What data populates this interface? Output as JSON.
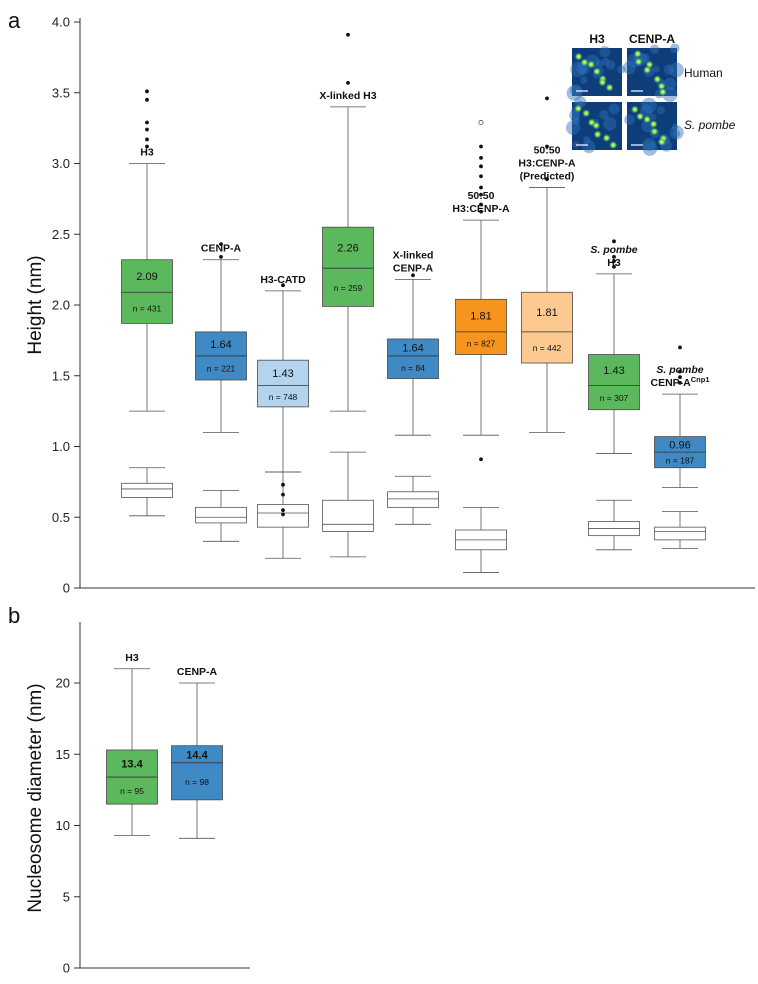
{
  "panels": {
    "a_letter": "a",
    "b_letter": "b"
  },
  "colors": {
    "green": "#5cb85c",
    "blue": "#3f8ac5",
    "light_blue": "#b3d4ec",
    "orange": "#f7941d",
    "peach": "#fcc991",
    "white": "#ffffff",
    "stroke": "#555555"
  },
  "inset": {
    "col_labels": [
      "H3",
      "CENP-A"
    ],
    "row_labels": [
      "Human",
      "S. pombe"
    ]
  },
  "chart_data": [
    {
      "type": "box",
      "panel": "a",
      "ylabel": "Height (nm)",
      "ylim": [
        0,
        4.0
      ],
      "yticks": [
        "0",
        "0.5",
        "1.0",
        "1.5",
        "2.0",
        "2.5",
        "3.0",
        "3.5",
        "4.0"
      ],
      "groups": [
        {
          "label": [
            "H3"
          ],
          "italic": [
            false
          ],
          "median_label": "2.09",
          "n_label": "n = 431",
          "color": "green",
          "upper": {
            "whisker_low": 1.25,
            "q1": 1.87,
            "median": 2.09,
            "q3": 2.32,
            "whisker_high": 3.0,
            "outliers": [
              3.12,
              3.17,
              3.24,
              3.29,
              3.45,
              3.51
            ]
          },
          "lower": {
            "whisker_low": 0.51,
            "q1": 0.64,
            "median": 0.7,
            "q3": 0.74,
            "whisker_high": 0.85,
            "outliers": []
          }
        },
        {
          "label": [
            "CENP-A"
          ],
          "italic": [
            false
          ],
          "median_label": "1.64",
          "n_label": "n = 221",
          "color": "blue",
          "upper": {
            "whisker_low": 1.1,
            "q1": 1.47,
            "median": 1.64,
            "q3": 1.81,
            "whisker_high": 2.32,
            "outliers": [
              2.34,
              2.43
            ]
          },
          "lower": {
            "whisker_low": 0.33,
            "q1": 0.46,
            "median": 0.5,
            "q3": 0.57,
            "whisker_high": 0.69,
            "outliers": []
          }
        },
        {
          "label": [
            "H3-CATD"
          ],
          "italic": [
            false
          ],
          "median_label": "1.43",
          "n_label": "n = 748",
          "color": "light_blue",
          "upper": {
            "whisker_low": 0.82,
            "q1": 1.28,
            "median": 1.43,
            "q3": 1.61,
            "whisker_high": 2.1,
            "outliers": [
              2.14
            ]
          },
          "lower": {
            "whisker_low": 0.21,
            "q1": 0.43,
            "median": 0.53,
            "q3": 0.59,
            "whisker_high": 0.82,
            "outliers": [
              0.52,
              0.55,
              0.66,
              0.73
            ]
          }
        },
        {
          "label": [
            "X-linked H3"
          ],
          "italic": [
            false
          ],
          "median_label": "2.26",
          "n_label": "n = 259",
          "color": "green",
          "upper": {
            "whisker_low": 1.25,
            "q1": 1.99,
            "median": 2.26,
            "q3": 2.55,
            "whisker_high": 3.4,
            "outliers": [
              3.57,
              3.91
            ]
          },
          "lower": {
            "whisker_low": 0.22,
            "q1": 0.4,
            "median": 0.45,
            "q3": 0.62,
            "whisker_high": 0.96,
            "outliers": []
          }
        },
        {
          "label": [
            "X-linked",
            "CENP-A"
          ],
          "italic": [
            false,
            false
          ],
          "median_label": "1.64",
          "n_label": "n = 84",
          "color": "blue",
          "upper": {
            "whisker_low": 1.08,
            "q1": 1.48,
            "median": 1.64,
            "q3": 1.76,
            "whisker_high": 2.18,
            "outliers": [
              2.21
            ]
          },
          "lower": {
            "whisker_low": 0.45,
            "q1": 0.57,
            "median": 0.63,
            "q3": 0.68,
            "whisker_high": 0.79,
            "outliers": []
          }
        },
        {
          "label": [
            "50:50",
            "H3:CENP-A"
          ],
          "italic": [
            false,
            false
          ],
          "median_label": "1.81",
          "n_label": "n = 827",
          "color": "orange",
          "upper": {
            "whisker_low": 1.08,
            "q1": 1.65,
            "median": 1.81,
            "q3": 2.04,
            "whisker_high": 2.6,
            "outliers": [
              0.91,
              2.66,
              2.71,
              2.78,
              2.83,
              2.91,
              2.98,
              3.04,
              3.12
            ]
          },
          "lower": {
            "whisker_low": 0.11,
            "q1": 0.27,
            "median": 0.34,
            "q3": 0.41,
            "whisker_high": 0.57,
            "outliers": []
          },
          "open_outliers": [
            3.29
          ]
        },
        {
          "label": [
            "50:50",
            "H3:CENP-A",
            "(Predicted)"
          ],
          "italic": [
            false,
            false,
            false
          ],
          "median_label": "1.81",
          "n_label": "n = 442",
          "color": "peach",
          "upper": {
            "whisker_low": 1.1,
            "q1": 1.59,
            "median": 1.81,
            "q3": 2.09,
            "whisker_high": 2.83,
            "outliers": [
              2.89,
              3.12,
              3.46
            ]
          },
          "lower": null
        },
        {
          "label": [
            "S. pombe",
            "H3"
          ],
          "italic": [
            true,
            false
          ],
          "median_label": "1.43",
          "n_label": "n = 307",
          "color": "green",
          "upper": {
            "whisker_low": 0.95,
            "q1": 1.26,
            "median": 1.43,
            "q3": 1.65,
            "whisker_high": 2.22,
            "outliers": [
              2.27,
              2.31,
              2.34,
              2.45
            ]
          },
          "lower": {
            "whisker_low": 0.27,
            "q1": 0.37,
            "median": 0.42,
            "q3": 0.47,
            "whisker_high": 0.62,
            "outliers": []
          }
        },
        {
          "label": [
            "S. pombe",
            "CENP-A"
          ],
          "label_sup": "Cnp1",
          "italic": [
            true,
            false
          ],
          "median_label": "0.96",
          "n_label": "n = 187",
          "color": "blue",
          "upper": {
            "whisker_low": 0.71,
            "q1": 0.85,
            "median": 0.96,
            "q3": 1.07,
            "whisker_high": 1.37,
            "outliers": [
              1.45,
              1.49,
              1.53,
              1.7
            ]
          },
          "lower": {
            "whisker_low": 0.28,
            "q1": 0.34,
            "median": 0.4,
            "q3": 0.43,
            "whisker_high": 0.54,
            "outliers": []
          }
        }
      ]
    },
    {
      "type": "box",
      "panel": "b",
      "ylabel": "Nucleosome diameter (nm)",
      "ylim": [
        0,
        24
      ],
      "yticks": [
        "0",
        "5",
        "10",
        "15",
        "20"
      ],
      "groups": [
        {
          "label": [
            "H3"
          ],
          "italic": [
            false
          ],
          "median_label": "13.4",
          "n_label": "n = 95",
          "color": "green",
          "upper": {
            "whisker_low": 9.3,
            "q1": 11.5,
            "median": 13.4,
            "q3": 15.3,
            "whisker_high": 21.0,
            "outliers": []
          }
        },
        {
          "label": [
            "CENP-A"
          ],
          "italic": [
            false
          ],
          "median_label": "14.4",
          "n_label": "n = 98",
          "color": "blue",
          "upper": {
            "whisker_low": 9.1,
            "q1": 11.8,
            "median": 14.4,
            "q3": 15.6,
            "whisker_high": 20.0,
            "outliers": []
          }
        }
      ]
    }
  ]
}
